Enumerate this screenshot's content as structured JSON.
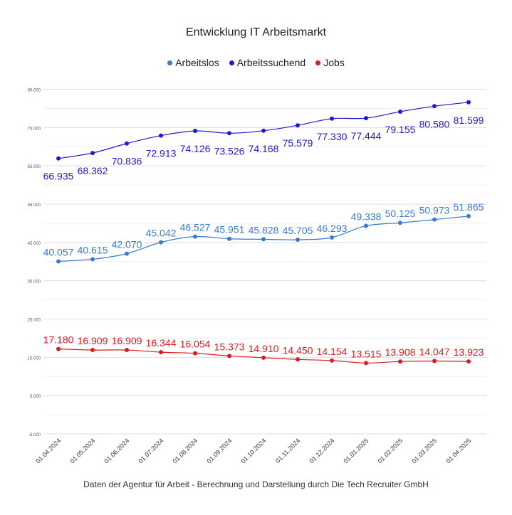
{
  "chart_data": {
    "type": "line",
    "title": "Entwicklung IT Arbeitsmarkt",
    "footnote": "Daten der Agentur für Arbeit - Berechnung und Darstellung durch Die Tech Recruiter GmbH",
    "legend_position": "top-center",
    "grid": true,
    "ylim": [
      -5000,
      85000
    ],
    "y_ticks": [
      85000,
      75000,
      65000,
      55000,
      45000,
      35000,
      25000,
      15000,
      5000,
      -5000
    ],
    "y_tick_labels": [
      "85.000",
      "75.000",
      "65.000",
      "55.000",
      "45.000",
      "35.000",
      "25.000",
      "15.000",
      "5.000",
      "-5.000"
    ],
    "categories": [
      "01.04.2024",
      "01.05.2024",
      "01.06.2024",
      "01.07.2024",
      "01.08.2024",
      "01.09.2024",
      "01.10.2024",
      "01.11.2024",
      "01.12.2024",
      "01.01.2025",
      "01.02.2025",
      "01.03.2025",
      "01.04.2025"
    ],
    "series": [
      {
        "name": "Arbeitslos",
        "color": "#3a7ad0",
        "values": [
          40057,
          40615,
          42070,
          45042,
          46527,
          45951,
          45828,
          45705,
          46293,
          49338,
          50125,
          50973,
          51865
        ],
        "labels": [
          "40.057",
          "40.615",
          "42.070",
          "45.042",
          "46.527",
          "45.951",
          "45.828",
          "45.705",
          "46.293",
          "49.338",
          "50.125",
          "50.973",
          "51.865"
        ]
      },
      {
        "name": "Arbeitssuchend",
        "color": "#1e1bd0",
        "values": [
          66935,
          68362,
          70836,
          72913,
          74126,
          73526,
          74168,
          75579,
          77330,
          77444,
          79155,
          80580,
          81599
        ],
        "labels": [
          "66.935",
          "68.362",
          "70.836",
          "72.913",
          "74.126",
          "73.526",
          "74.168",
          "75.579",
          "77.330",
          "77.444",
          "79.155",
          "80.580",
          "81.599"
        ]
      },
      {
        "name": "Jobs",
        "color": "#e0191e",
        "values": [
          17180,
          16909,
          16909,
          16344,
          16054,
          15373,
          14910,
          14450,
          14154,
          13515,
          13908,
          14047,
          13923
        ],
        "labels": [
          "17.180",
          "16.909",
          "16.909",
          "16.344",
          "16.054",
          "15.373",
          "14.910",
          "14.450",
          "14.154",
          "13.515",
          "13.908",
          "14.047",
          "13.923"
        ]
      }
    ]
  }
}
